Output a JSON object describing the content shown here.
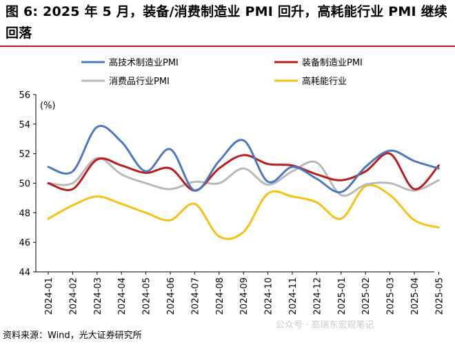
{
  "title": "图 6: 2025 年 5 月，装备/消费制造业 PMI 回升，高耗能行业 PMI 继续回落",
  "source": "资料来源：Wind，光大证券研究所",
  "watermark": "公众号 · 高瑞东宏观笔记",
  "chart_data": {
    "type": "line",
    "unit_label": "(%)",
    "ylim": [
      44,
      56
    ],
    "yticks": [
      44,
      46,
      48,
      50,
      52,
      54,
      56
    ],
    "categories": [
      "2024-01",
      "2024-02",
      "2024-03",
      "2024-04",
      "2024-05",
      "2024-06",
      "2024-07",
      "2024-08",
      "2024-09",
      "2024-10",
      "2024-11",
      "2024-12",
      "2025-01",
      "2025-02",
      "2025-03",
      "2025-04",
      "2025-05"
    ],
    "legend_position": "top",
    "grid": false,
    "series": [
      {
        "name": "高技术制造业PMI",
        "color": "#4a78c0",
        "values": [
          51.1,
          50.8,
          53.8,
          52.8,
          50.8,
          52.3,
          49.5,
          51.5,
          52.9,
          50.1,
          51.1,
          50.3,
          49.4,
          51.1,
          52.2,
          51.5,
          51.0
        ]
      },
      {
        "name": "装备制造业PMI",
        "color": "#b81c1c",
        "values": [
          50.0,
          49.6,
          51.6,
          51.2,
          50.7,
          51.0,
          49.5,
          51.0,
          51.9,
          51.3,
          51.2,
          50.6,
          50.2,
          50.8,
          52.0,
          49.6,
          51.2
        ]
      },
      {
        "name": "消费品行业PMI",
        "color": "#b8b8b8",
        "values": [
          50.0,
          50.0,
          51.7,
          50.6,
          50.0,
          49.6,
          50.1,
          50.0,
          51.0,
          49.9,
          50.8,
          51.4,
          49.2,
          49.9,
          50.0,
          49.5,
          50.2
        ]
      },
      {
        "name": "高耗能行业",
        "color": "#f5c214",
        "values": [
          47.6,
          48.5,
          49.1,
          48.6,
          48.0,
          47.5,
          48.6,
          46.4,
          46.7,
          49.3,
          49.1,
          48.7,
          47.6,
          49.8,
          49.2,
          47.5,
          47.0
        ]
      }
    ]
  }
}
